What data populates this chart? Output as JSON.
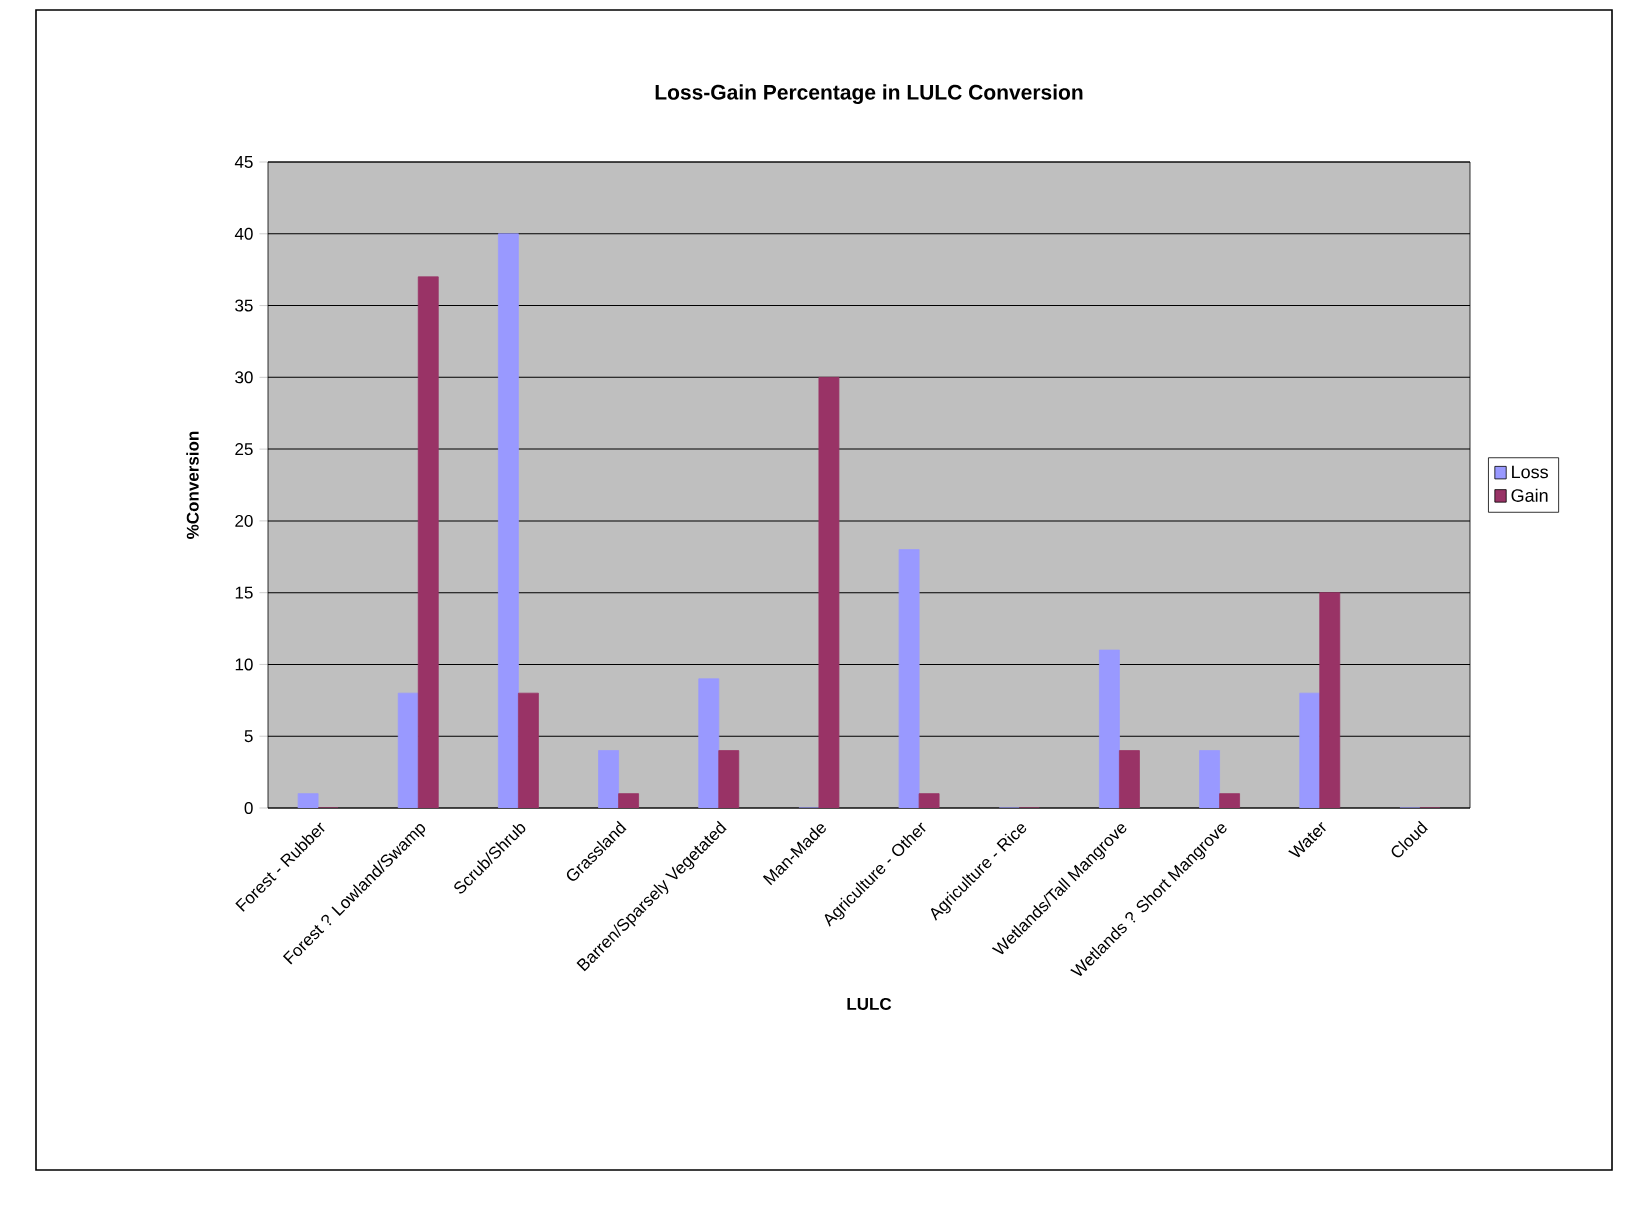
{
  "chart_data": {
    "type": "bar",
    "title": "Loss-Gain Percentage in LULC Conversion",
    "xlabel": "LULC",
    "ylabel": "%Conversion",
    "categories": [
      "Forest - Rubber",
      "Forest ? Lowland/Swamp",
      "Scrub/Shrub",
      "Grassland",
      "Barren/Sparsely Vegetated",
      "Man-Made",
      "Agriculture - Other",
      "Agriculture - Rice",
      "Wetlands/Tall Mangrove",
      "Wetlands ? Short Mangrove",
      "Water",
      "Cloud"
    ],
    "series": [
      {
        "name": "Loss",
        "color": "#9999ff",
        "values": [
          1,
          8,
          40,
          4,
          9,
          0,
          18,
          0,
          11,
          4,
          8,
          0
        ]
      },
      {
        "name": "Gain",
        "color": "#993366",
        "values": [
          0,
          37,
          8,
          1,
          4,
          30,
          1,
          0,
          4,
          1,
          15,
          0
        ]
      }
    ],
    "ylim": [
      0,
      45
    ],
    "yticks": [
      0,
      5,
      10,
      15,
      20,
      25,
      30,
      35,
      40,
      45
    ],
    "grid": "y",
    "legend": "right"
  }
}
